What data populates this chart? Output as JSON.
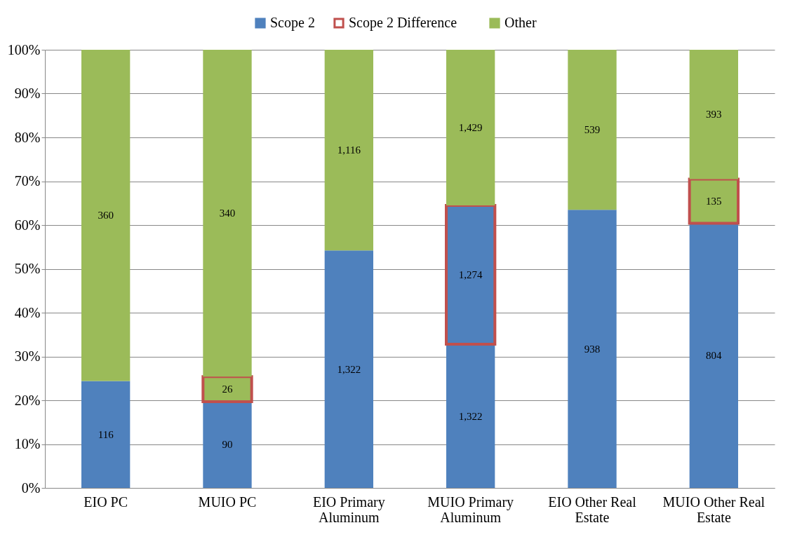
{
  "chart_data": {
    "type": "bar",
    "stacked": true,
    "categories": [
      "EIO PC",
      "MUIO PC",
      "EIO Primary Aluminum",
      "MUIO Primary Aluminum",
      "EIO Other Real Estate",
      "MUIO Other Real Estate"
    ],
    "series": [
      {
        "name": "Scope 2",
        "color": "#4f81bd",
        "values": [
          24.4,
          19.7,
          54.2,
          32.8,
          63.5,
          60.4
        ]
      },
      {
        "name": "Scope 2 Difference",
        "color": "#c0504d",
        "colors": [
          null,
          "#9bbb59",
          null,
          "#4f81bd",
          null,
          "#9bbb59"
        ],
        "values": [
          null,
          5.7,
          null,
          31.7,
          null,
          10.1
        ]
      },
      {
        "name": "Other",
        "color": "#9bbb59",
        "values": [
          75.6,
          74.6,
          45.8,
          35.5,
          36.5,
          29.5
        ]
      }
    ],
    "annotations": [
      "116",
      "360",
      "90",
      "26",
      "340",
      "1,322",
      "1,116",
      "1,322",
      "1,274",
      "1,429",
      "938",
      "539",
      "804",
      "135",
      "393"
    ],
    "ylim": [
      0,
      100
    ],
    "yticks": [
      {
        "value": 0,
        "label": "0%"
      },
      {
        "value": 10,
        "label": "10%"
      },
      {
        "value": 20,
        "label": "20%"
      },
      {
        "value": 30,
        "label": "30%"
      },
      {
        "value": 40,
        "label": "40%"
      },
      {
        "value": 50,
        "label": "50%"
      },
      {
        "value": 60,
        "label": "60%"
      },
      {
        "value": 70,
        "label": "70%"
      },
      {
        "value": 80,
        "label": "80%"
      },
      {
        "value": 90,
        "label": "90%"
      },
      {
        "value": 100,
        "label": "100%"
      }
    ],
    "grid": "y",
    "legend": "top"
  }
}
